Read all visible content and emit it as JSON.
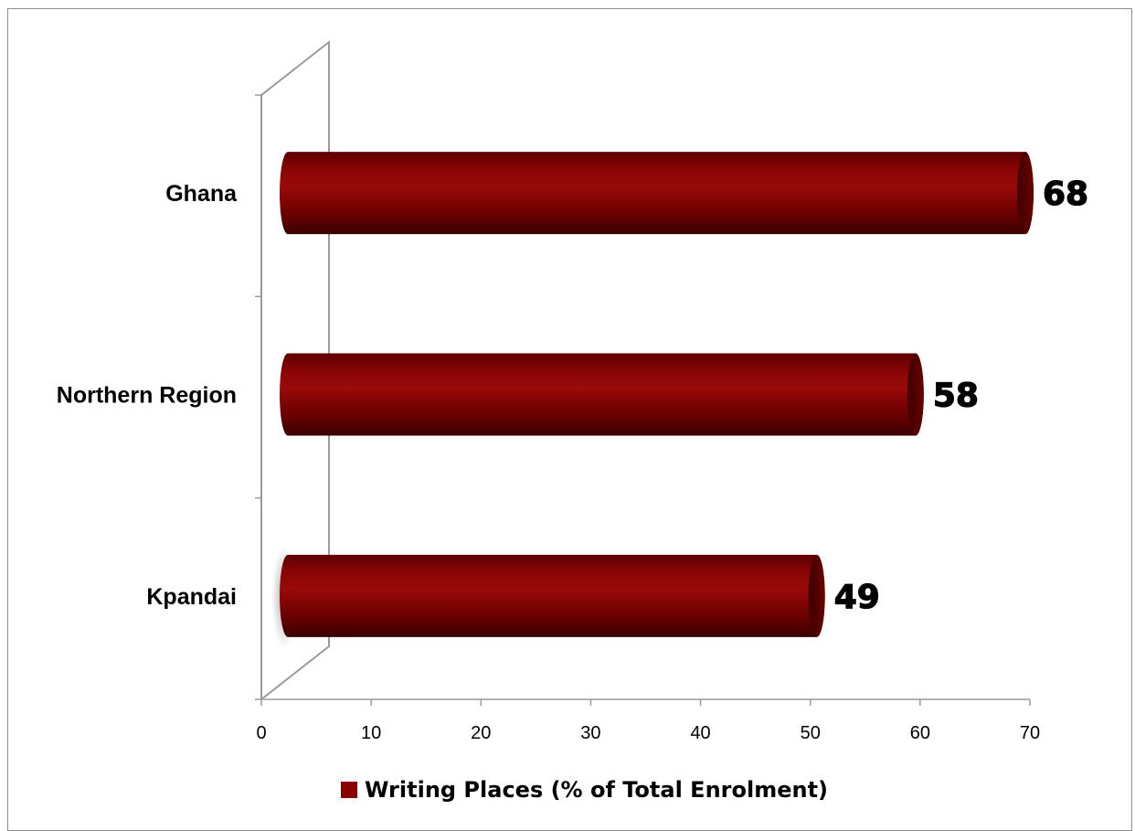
{
  "chart_data": {
    "type": "bar",
    "orientation": "horizontal",
    "categories": [
      "Ghana",
      "Northern Region",
      "Kpandai"
    ],
    "series": [
      {
        "name": "Writing Places (% of Total Enrolment)",
        "values": [
          68,
          58,
          49
        ],
        "color": "#8b0000"
      }
    ],
    "data_labels": [
      "68",
      "58",
      "49"
    ],
    "xlim": [
      0,
      70
    ],
    "x_ticks": [
      "0",
      "10",
      "20",
      "30",
      "40",
      "50",
      "60",
      "70"
    ],
    "grid": false,
    "legend": "bottom",
    "style": "3d-cylinder"
  }
}
